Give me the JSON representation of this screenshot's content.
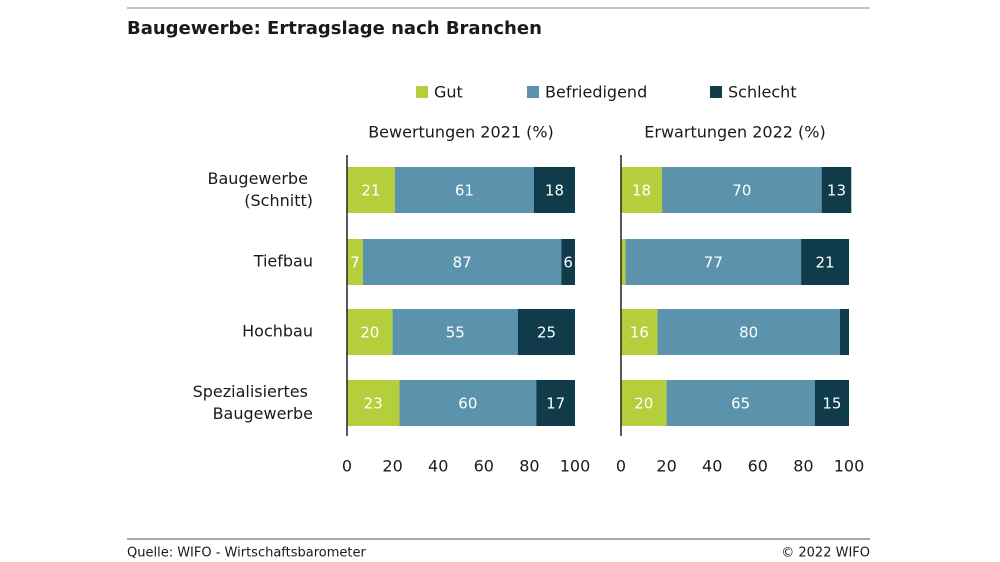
{
  "title": "Baugewerbe: Ertragslage nach Branchen",
  "source": "Quelle: WIFO - Wirtschaftsbarometer",
  "copyright": "© 2022 WIFO",
  "chart_data": [
    {
      "type": "bar",
      "orientation": "horizontal",
      "stacked": true,
      "subtitle": "Bewertungen 2021 (%)",
      "categories": [
        "Baugewerbe (Schnitt)",
        "Tiefbau",
        "Hochbau",
        "Spezialisiertes Baugewerbe"
      ],
      "series": [
        {
          "name": "Gut",
          "color": "#b5cf3c",
          "values": [
            21,
            7,
            20,
            23
          ]
        },
        {
          "name": "Befriedigend",
          "color": "#5a93ab",
          "values": [
            61,
            87,
            55,
            60
          ]
        },
        {
          "name": "Schlecht",
          "color": "#0f3b4a",
          "values": [
            18,
            6,
            25,
            17
          ]
        }
      ],
      "xlim": [
        0,
        100
      ],
      "xticks": [
        0,
        20,
        40,
        60,
        80,
        100
      ]
    },
    {
      "type": "bar",
      "orientation": "horizontal",
      "stacked": true,
      "subtitle": "Erwartungen 2022 (%)",
      "series": [
        {
          "name": "Gut",
          "color": "#b5cf3c",
          "values": [
            18,
            2,
            16,
            20
          ],
          "value_labels": [
            "18",
            null,
            "16",
            "20"
          ]
        },
        {
          "name": "Befriedigend",
          "color": "#5a93ab",
          "values": [
            70,
            77,
            80,
            65
          ]
        },
        {
          "name": "Schlecht",
          "color": "#0f3b4a",
          "values": [
            13,
            21,
            4,
            15
          ],
          "value_labels": [
            "13",
            "21",
            null,
            "15"
          ]
        }
      ],
      "xlim": [
        0,
        100
      ],
      "xticks": [
        0,
        20,
        40,
        60,
        80,
        100
      ]
    }
  ]
}
